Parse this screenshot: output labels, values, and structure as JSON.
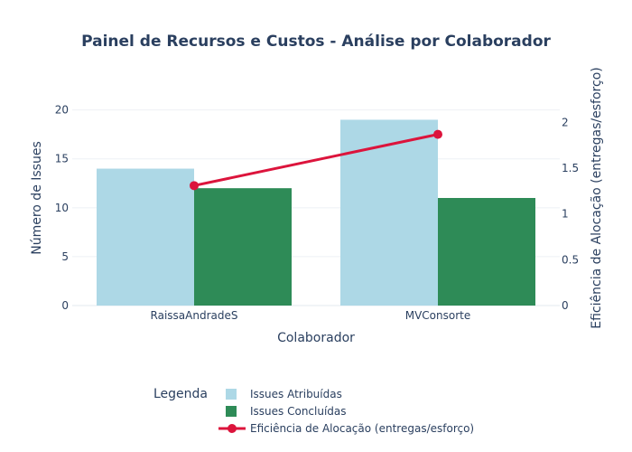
{
  "chart_data": {
    "type": "bar",
    "title": "Painel de Recursos e Custos - Análise por Colaborador",
    "xlabel": "Colaborador",
    "ylabel": "Número de Issues",
    "y2label": "Eficiência de Alocação (entregas/esforço)",
    "categories": [
      "RaissaAndradeS",
      "MVConsorte"
    ],
    "ylim": [
      0,
      22
    ],
    "y2lim": [
      0,
      2.35
    ],
    "yticks": [
      0,
      5,
      10,
      15,
      20
    ],
    "y2ticks": [
      0,
      0.5,
      1,
      1.5,
      2
    ],
    "series": [
      {
        "name": "Issues Atribuídas",
        "type": "bar",
        "axis": "y",
        "values": [
          14,
          19
        ],
        "color": "#add8e6"
      },
      {
        "name": "Issues Concluídas",
        "type": "bar",
        "axis": "y",
        "values": [
          12,
          11
        ],
        "color": "#2e8b57"
      },
      {
        "name": "Eficiência de Alocação (entregas/esforço)",
        "type": "line",
        "axis": "y2",
        "values": [
          1.31,
          1.87
        ],
        "color": "#dc143c"
      }
    ],
    "legend": {
      "title": "Legenda",
      "position": "bottom"
    },
    "grid": true
  }
}
